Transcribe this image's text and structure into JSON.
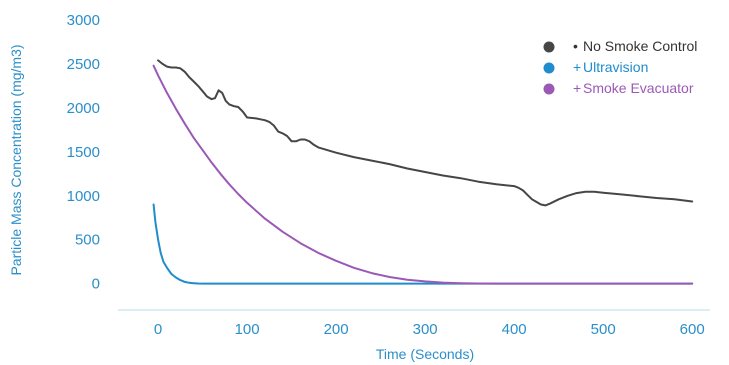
{
  "chart_data": {
    "type": "line",
    "xlabel": "Time (Seconds)",
    "ylabel": "Particle Mass Concentration (mg/m3)",
    "xlim": [
      -45,
      620
    ],
    "ylim": [
      -300,
      3000
    ],
    "x_ticks": [
      0,
      100,
      200,
      300,
      400,
      500,
      600
    ],
    "y_ticks": [
      0,
      500,
      1000,
      1500,
      2000,
      2500,
      3000
    ],
    "grid": false,
    "legend_position": "top-right",
    "series": [
      {
        "name": "No Smoke Control",
        "marker": "•",
        "color": "#464646",
        "x": [
          0,
          5,
          10,
          15,
          20,
          25,
          30,
          35,
          40,
          45,
          50,
          55,
          60,
          64,
          68,
          72,
          76,
          80,
          85,
          90,
          95,
          100,
          110,
          115,
          120,
          125,
          130,
          135,
          140,
          145,
          150,
          155,
          160,
          165,
          170,
          175,
          180,
          200,
          220,
          240,
          260,
          280,
          300,
          320,
          340,
          360,
          380,
          400,
          405,
          410,
          415,
          420,
          425,
          430,
          435,
          440,
          450,
          460,
          470,
          480,
          490,
          500,
          520,
          540,
          560,
          580,
          600
        ],
        "y": [
          2540,
          2500,
          2470,
          2460,
          2460,
          2450,
          2410,
          2350,
          2300,
          2250,
          2190,
          2130,
          2100,
          2110,
          2200,
          2170,
          2080,
          2040,
          2020,
          2010,
          1960,
          1890,
          1880,
          1870,
          1860,
          1840,
          1800,
          1730,
          1710,
          1680,
          1620,
          1620,
          1640,
          1640,
          1620,
          1580,
          1550,
          1490,
          1440,
          1400,
          1360,
          1310,
          1270,
          1230,
          1200,
          1160,
          1130,
          1110,
          1090,
          1060,
          1010,
          960,
          930,
          900,
          890,
          910,
          960,
          1000,
          1030,
          1045,
          1045,
          1035,
          1015,
          995,
          975,
          960,
          935
        ]
      },
      {
        "name": "Ultravision",
        "marker": "+",
        "color": "#1f8ccc",
        "x": [
          -5,
          -3,
          0,
          3,
          6,
          10,
          15,
          20,
          25,
          30,
          35,
          40,
          45,
          50,
          60,
          80,
          100,
          150,
          200,
          300,
          400,
          500,
          600
        ],
        "y": [
          900,
          700,
          500,
          350,
          250,
          180,
          110,
          70,
          40,
          20,
          10,
          5,
          2,
          0,
          0,
          0,
          0,
          0,
          0,
          0,
          0,
          0,
          0
        ]
      },
      {
        "name": "Smoke Evacuator",
        "marker": "+",
        "color": "#9b59b6",
        "x": [
          -5,
          0,
          10,
          20,
          30,
          40,
          50,
          60,
          70,
          80,
          90,
          100,
          120,
          140,
          160,
          180,
          200,
          220,
          240,
          260,
          280,
          300,
          320,
          340,
          360,
          380,
          400,
          450,
          500,
          550,
          600
        ],
        "y": [
          2480,
          2370,
          2170,
          1990,
          1820,
          1660,
          1520,
          1380,
          1250,
          1130,
          1020,
          920,
          740,
          590,
          460,
          350,
          260,
          180,
          120,
          75,
          45,
          25,
          12,
          5,
          2,
          0,
          0,
          0,
          0,
          0,
          0
        ]
      }
    ]
  }
}
